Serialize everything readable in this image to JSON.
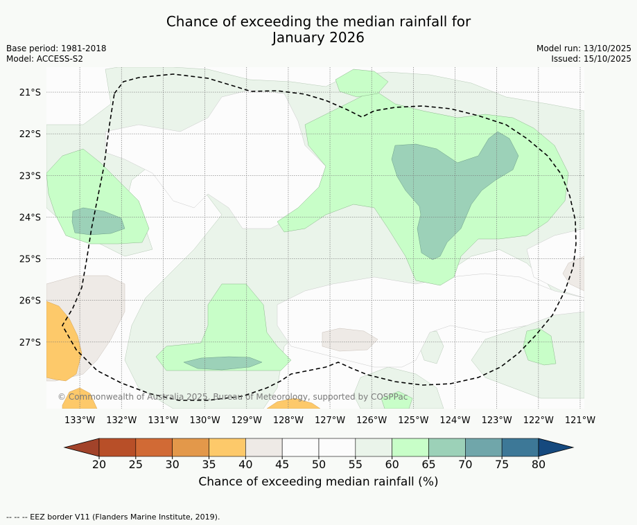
{
  "title": {
    "line1": "Chance of exceeding the median rainfall for",
    "line2": "January 2026"
  },
  "meta": {
    "base_period": "Base period: 1981-2018",
    "model": "Model: ACCESS-S2",
    "model_run": "Model run: 13/10/2025",
    "issued": "Issued: 15/10/2025"
  },
  "map": {
    "lat_labels": [
      "21°S",
      "22°S",
      "23°S",
      "24°S",
      "25°S",
      "26°S",
      "27°S"
    ],
    "lat_values": [
      -21,
      -22,
      -23,
      -24,
      -25,
      -26,
      -27
    ],
    "lon_labels": [
      "133°W",
      "132°W",
      "131°W",
      "130°W",
      "129°W",
      "128°W",
      "127°W",
      "126°W",
      "125°W",
      "124°W",
      "123°W",
      "122°W",
      "121°W"
    ],
    "lon_values": [
      -133,
      -132,
      -131,
      -130,
      -129,
      -128,
      -127,
      -126,
      -125,
      -124,
      -123,
      -122,
      -121
    ],
    "extent": {
      "lon_min": -133.8,
      "lon_max": -120.9,
      "lat_min": -28.6,
      "lat_max": -20.4
    },
    "copyright": "© Commonwealth of Australia 2025, Bureau of Meteorology, supported by COSPPac"
  },
  "colorbar": {
    "ticks": [
      "20",
      "25",
      "30",
      "35",
      "40",
      "45",
      "50",
      "55",
      "60",
      "65",
      "70",
      "75",
      "80"
    ],
    "colors": [
      "#a2432a",
      "#b84f28",
      "#d16a35",
      "#e3984a",
      "#fdc96a",
      "#eeeae6",
      "#fcfcfc",
      "#fcfcfc",
      "#eaf4ea",
      "#c8fec8",
      "#9cd1b8",
      "#70a6aa",
      "#3d7897",
      "#15497e"
    ],
    "label": "Chance of exceeding median rainfall (%)"
  },
  "footnote": "--  --  -- EEZ border V11 (Flanders Marine Institute, 2019)."
}
